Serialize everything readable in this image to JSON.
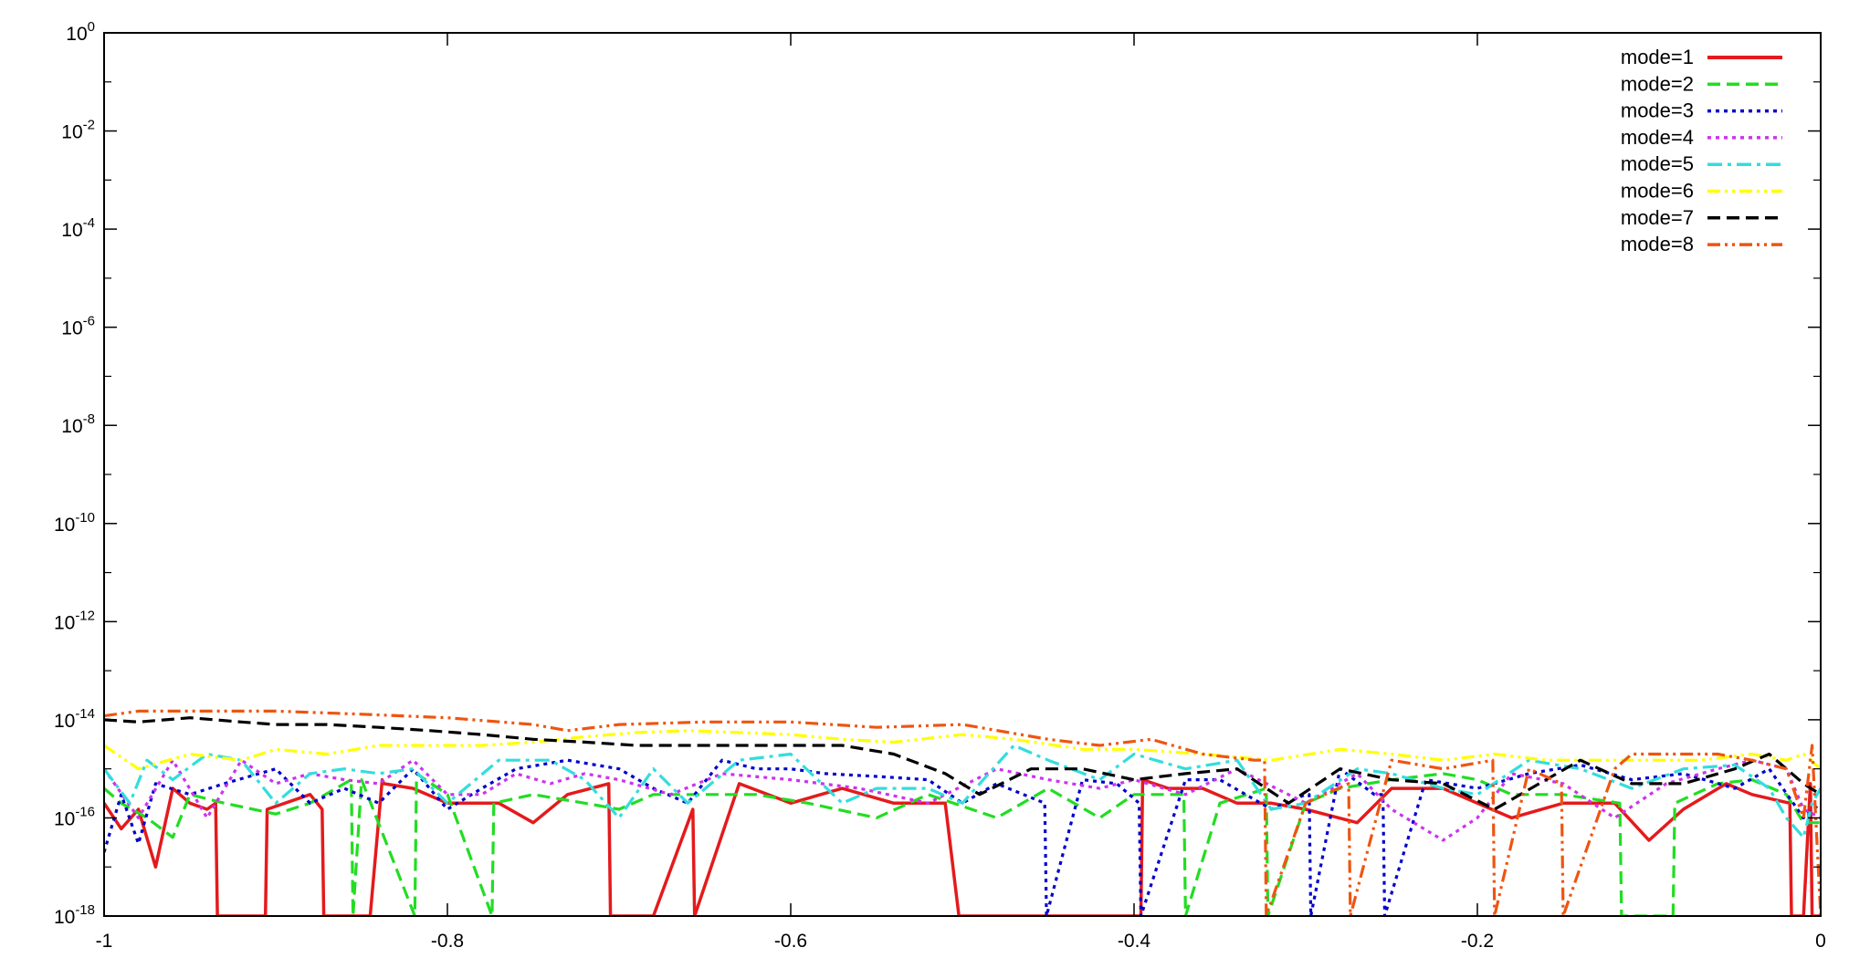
{
  "chart_data": {
    "type": "line",
    "title": "",
    "xlabel": "",
    "ylabel": "",
    "xlim": [
      -1,
      0
    ],
    "ylim": [
      1e-18,
      1
    ],
    "yscale": "log",
    "grid": false,
    "legend_position": "top-right",
    "x_ticks": [
      -1,
      -0.8,
      -0.6,
      -0.4,
      -0.2,
      0
    ],
    "x_tick_labels": [
      "-1",
      "-0.8",
      "-0.6",
      "-0.4",
      "-0.2",
      "0"
    ],
    "y_ticks": [
      {
        "value": 1e-18,
        "base": "10",
        "exp": "-18"
      },
      {
        "value": 1e-16,
        "base": "10",
        "exp": "-16"
      },
      {
        "value": 1e-14,
        "base": "10",
        "exp": "-14"
      },
      {
        "value": 1e-12,
        "base": "10",
        "exp": "-12"
      },
      {
        "value": 1e-10,
        "base": "10",
        "exp": "-10"
      },
      {
        "value": 1e-08,
        "base": "10",
        "exp": "-8"
      },
      {
        "value": 1e-06,
        "base": "10",
        "exp": "-6"
      },
      {
        "value": 0.0001,
        "base": "10",
        "exp": "-4"
      },
      {
        "value": 0.01,
        "base": "10",
        "exp": "-2"
      },
      {
        "value": 1,
        "base": "10",
        "exp": "0"
      }
    ],
    "series": [
      {
        "name": "mode=1",
        "color": "#e41a1c",
        "dash": "solid",
        "x": [
          -1,
          -0.99,
          -0.98,
          -0.97,
          -0.96,
          -0.95,
          -0.94,
          -0.935,
          -0.934,
          -0.906,
          -0.905,
          -0.88,
          -0.873,
          -0.872,
          -0.845,
          -0.838,
          -0.837,
          -0.82,
          -0.8,
          -0.77,
          -0.75,
          -0.73,
          -0.706,
          -0.705,
          -0.68,
          -0.657,
          -0.656,
          -0.63,
          -0.6,
          -0.57,
          -0.54,
          -0.51,
          -0.502,
          -0.501,
          -0.45,
          -0.396,
          -0.395,
          -0.38,
          -0.36,
          -0.34,
          -0.32,
          -0.3,
          -0.27,
          -0.25,
          -0.22,
          -0.2,
          -0.18,
          -0.15,
          -0.12,
          -0.1,
          -0.08,
          -0.055,
          -0.04,
          -0.018,
          -0.017,
          -0.01,
          -0.006,
          -0.005,
          0
        ],
        "y": [
          2e-16,
          6e-17,
          1.5e-16,
          1e-17,
          4e-16,
          2e-16,
          1.5e-16,
          2e-16,
          1e-18,
          1e-18,
          1.5e-16,
          3e-16,
          1.5e-16,
          1e-18,
          1e-18,
          6e-16,
          5e-16,
          4e-16,
          2e-16,
          2e-16,
          8e-17,
          3e-16,
          5e-16,
          1e-18,
          1e-18,
          1.5e-16,
          1e-18,
          5e-16,
          2e-16,
          4e-16,
          2e-16,
          2e-16,
          1e-18,
          1e-18,
          1e-18,
          1e-18,
          6e-16,
          4e-16,
          4e-16,
          2e-16,
          2e-16,
          1.5e-16,
          8e-17,
          4e-16,
          4e-16,
          2e-16,
          1e-16,
          2e-16,
          2e-16,
          3.5e-17,
          1.5e-16,
          5e-16,
          3e-16,
          2e-16,
          1e-18,
          1e-18,
          5e-16,
          1e-18,
          1e-18
        ]
      },
      {
        "name": "mode=2",
        "color": "#22dd22",
        "dash": "dashed",
        "x": [
          -1,
          -0.99,
          -0.975,
          -0.96,
          -0.95,
          -0.93,
          -0.9,
          -0.88,
          -0.856,
          -0.855,
          -0.85,
          -0.819,
          -0.818,
          -0.8,
          -0.774,
          -0.773,
          -0.75,
          -0.72,
          -0.7,
          -0.68,
          -0.65,
          -0.62,
          -0.59,
          -0.55,
          -0.52,
          -0.48,
          -0.45,
          -0.42,
          -0.4,
          -0.371,
          -0.37,
          -0.35,
          -0.323,
          -0.322,
          -0.3,
          -0.28,
          -0.25,
          -0.22,
          -0.2,
          -0.18,
          -0.15,
          -0.117,
          -0.116,
          -0.086,
          -0.085,
          -0.06,
          -0.04,
          -0.02,
          -0.01,
          0
        ],
        "y": [
          4e-16,
          2e-16,
          1e-16,
          4e-17,
          3e-16,
          2e-16,
          1.2e-16,
          2e-16,
          6e-16,
          1e-18,
          6e-16,
          1e-18,
          8e-16,
          3e-16,
          1e-18,
          2e-16,
          3e-16,
          2e-16,
          1.5e-16,
          3e-16,
          3e-16,
          3e-16,
          2e-16,
          1e-16,
          3e-16,
          1e-16,
          4e-16,
          1e-16,
          3e-16,
          3e-16,
          1e-18,
          2e-16,
          4e-16,
          1e-18,
          2e-16,
          4e-16,
          6e-16,
          8e-16,
          6e-16,
          3e-16,
          3e-16,
          2e-16,
          1e-18,
          1e-18,
          2e-16,
          5e-16,
          6e-16,
          3e-16,
          8e-17,
          8e-17
        ]
      },
      {
        "name": "mode=3",
        "color": "#0000cc",
        "dash": "dotted",
        "x": [
          -1,
          -0.99,
          -0.98,
          -0.97,
          -0.95,
          -0.93,
          -0.9,
          -0.88,
          -0.86,
          -0.84,
          -0.82,
          -0.8,
          -0.78,
          -0.76,
          -0.73,
          -0.7,
          -0.68,
          -0.66,
          -0.64,
          -0.62,
          -0.6,
          -0.58,
          -0.55,
          -0.52,
          -0.5,
          -0.48,
          -0.452,
          -0.451,
          -0.43,
          -0.41,
          -0.397,
          -0.396,
          -0.37,
          -0.35,
          -0.32,
          -0.3,
          -0.298,
          -0.297,
          -0.28,
          -0.26,
          -0.255,
          -0.254,
          -0.23,
          -0.2,
          -0.17,
          -0.14,
          -0.11,
          -0.08,
          -0.05,
          -0.03,
          -0.01,
          0
        ],
        "y": [
          2e-17,
          3e-16,
          3e-17,
          5e-16,
          3e-16,
          5e-16,
          1e-15,
          2e-16,
          4e-16,
          2e-16,
          1e-15,
          1.5e-16,
          4e-16,
          1e-15,
          1.5e-15,
          1e-15,
          4e-16,
          2e-16,
          1.5e-15,
          1e-15,
          1e-15,
          8e-16,
          7e-16,
          6e-16,
          2e-16,
          5e-16,
          2e-16,
          1e-18,
          6e-16,
          5e-16,
          2e-16,
          1e-18,
          6e-16,
          6e-16,
          1.5e-16,
          3e-16,
          3e-16,
          1e-18,
          1e-15,
          3e-16,
          3e-16,
          1e-18,
          6e-16,
          4e-16,
          8e-16,
          1.2e-15,
          6e-16,
          8e-16,
          4e-16,
          1e-15,
          1e-16,
          2e-16
        ]
      },
      {
        "name": "mode=4",
        "color": "#cc33ee",
        "dash": "dotted",
        "x": [
          -1,
          -0.98,
          -0.96,
          -0.94,
          -0.92,
          -0.9,
          -0.88,
          -0.86,
          -0.84,
          -0.82,
          -0.8,
          -0.78,
          -0.76,
          -0.74,
          -0.72,
          -0.7,
          -0.67,
          -0.64,
          -0.6,
          -0.56,
          -0.52,
          -0.48,
          -0.45,
          -0.42,
          -0.4,
          -0.37,
          -0.34,
          -0.3,
          -0.27,
          -0.25,
          -0.22,
          -0.2,
          -0.18,
          -0.15,
          -0.12,
          -0.09,
          -0.06,
          -0.04,
          -0.02,
          -0.01,
          0
        ],
        "y": [
          1e-15,
          1e-16,
          1.5e-15,
          1e-16,
          1.5e-15,
          5e-16,
          8e-16,
          6e-16,
          5e-16,
          1.5e-15,
          3e-16,
          3e-16,
          8e-16,
          5e-16,
          8e-16,
          6e-16,
          3e-16,
          8e-16,
          6e-16,
          4e-16,
          2e-16,
          1e-15,
          6e-16,
          4e-16,
          6e-16,
          3e-16,
          1e-15,
          2e-16,
          8e-16,
          1.5e-16,
          3.5e-17,
          1e-16,
          8e-16,
          5e-16,
          1e-16,
          5e-16,
          1e-15,
          1.5e-15,
          1e-15,
          1.5e-16,
          1e-16
        ]
      },
      {
        "name": "mode=5",
        "color": "#33dddd",
        "dash": "dashdot",
        "x": [
          -1,
          -0.985,
          -0.975,
          -0.96,
          -0.94,
          -0.92,
          -0.9,
          -0.88,
          -0.86,
          -0.84,
          -0.82,
          -0.8,
          -0.77,
          -0.74,
          -0.72,
          -0.7,
          -0.68,
          -0.66,
          -0.63,
          -0.6,
          -0.57,
          -0.55,
          -0.52,
          -0.5,
          -0.47,
          -0.45,
          -0.42,
          -0.4,
          -0.37,
          -0.34,
          -0.32,
          -0.3,
          -0.27,
          -0.25,
          -0.22,
          -0.2,
          -0.17,
          -0.14,
          -0.11,
          -0.08,
          -0.05,
          -0.03,
          -0.02,
          -0.01,
          -0.005,
          0
        ],
        "y": [
          1e-15,
          2e-16,
          1.5e-15,
          6e-16,
          2e-15,
          1.5e-15,
          2e-16,
          8e-16,
          1e-15,
          8e-16,
          1e-15,
          2e-16,
          1.5e-15,
          1.5e-15,
          6e-16,
          1e-16,
          1e-15,
          2e-16,
          1.5e-15,
          2e-15,
          2e-16,
          4e-16,
          4e-16,
          2e-16,
          3e-15,
          1.5e-15,
          6e-16,
          2e-15,
          1e-15,
          1.5e-15,
          1.5e-16,
          2e-16,
          1e-15,
          8e-16,
          4e-16,
          3e-16,
          1.5e-15,
          1e-15,
          4e-16,
          1e-15,
          1.2e-15,
          4e-16,
          1e-16,
          4e-17,
          2e-16,
          4e-16
        ]
      },
      {
        "name": "mode=6",
        "color": "#ffff00",
        "dash": "dashdotdot",
        "x": [
          -1,
          -0.98,
          -0.95,
          -0.92,
          -0.9,
          -0.87,
          -0.84,
          -0.81,
          -0.78,
          -0.75,
          -0.72,
          -0.69,
          -0.66,
          -0.63,
          -0.6,
          -0.57,
          -0.54,
          -0.5,
          -0.47,
          -0.43,
          -0.4,
          -0.36,
          -0.32,
          -0.28,
          -0.25,
          -0.22,
          -0.19,
          -0.16,
          -0.13,
          -0.1,
          -0.07,
          -0.04,
          -0.02,
          -0.01,
          0
        ],
        "y": [
          3e-15,
          1e-15,
          2e-15,
          1.5e-15,
          2.5e-15,
          2e-15,
          3e-15,
          3e-15,
          3e-15,
          3.5e-15,
          4.5e-15,
          5.5e-15,
          6e-15,
          5.5e-15,
          5e-15,
          4e-15,
          3.5e-15,
          5e-15,
          4e-15,
          2.5e-15,
          2.5e-15,
          2e-15,
          1.5e-15,
          2.5e-15,
          2e-15,
          1.5e-15,
          2e-15,
          1.5e-15,
          1.5e-15,
          1.5e-15,
          1.5e-15,
          2e-15,
          1.5e-15,
          2e-15,
          1e-15
        ]
      },
      {
        "name": "mode=7",
        "color": "#000000",
        "dash": "dashed",
        "x": [
          -1,
          -0.98,
          -0.95,
          -0.92,
          -0.9,
          -0.87,
          -0.84,
          -0.81,
          -0.78,
          -0.75,
          -0.72,
          -0.69,
          -0.66,
          -0.63,
          -0.6,
          -0.57,
          -0.54,
          -0.51,
          -0.49,
          -0.46,
          -0.43,
          -0.4,
          -0.37,
          -0.34,
          -0.31,
          -0.28,
          -0.25,
          -0.22,
          -0.19,
          -0.16,
          -0.14,
          -0.11,
          -0.08,
          -0.05,
          -0.03,
          -0.01,
          0
        ],
        "y": [
          1e-14,
          9e-15,
          1.1e-14,
          9e-15,
          8e-15,
          8e-15,
          7e-15,
          6e-15,
          5e-15,
          4e-15,
          3.5e-15,
          3e-15,
          3e-15,
          3e-15,
          3e-15,
          3e-15,
          2e-15,
          8e-16,
          3e-16,
          1e-15,
          1e-15,
          6e-16,
          8e-16,
          1e-15,
          2e-16,
          1e-15,
          6e-16,
          5e-16,
          1.5e-16,
          6e-16,
          1.5e-15,
          5e-16,
          5e-16,
          1e-15,
          2e-15,
          5e-16,
          3e-16
        ]
      },
      {
        "name": "mode=8",
        "color": "#ee5511",
        "dash": "dashdotdot",
        "x": [
          -1,
          -0.98,
          -0.95,
          -0.9,
          -0.85,
          -0.8,
          -0.75,
          -0.73,
          -0.7,
          -0.65,
          -0.6,
          -0.55,
          -0.5,
          -0.45,
          -0.42,
          -0.39,
          -0.36,
          -0.33,
          -0.324,
          -0.323,
          -0.3,
          -0.275,
          -0.274,
          -0.25,
          -0.22,
          -0.191,
          -0.19,
          -0.17,
          -0.151,
          -0.15,
          -0.12,
          -0.11,
          -0.09,
          -0.06,
          -0.04,
          -0.02,
          -0.01,
          -0.005,
          0
        ],
        "y": [
          1.2e-14,
          1.5e-14,
          1.5e-14,
          1.5e-14,
          1.3e-14,
          1.1e-14,
          8e-15,
          6e-15,
          8e-15,
          9e-15,
          9e-15,
          7e-15,
          8e-15,
          4e-15,
          3e-15,
          4e-15,
          2e-15,
          1.5e-15,
          1.5e-15,
          1e-18,
          2e-16,
          5e-16,
          1e-18,
          1.5e-15,
          1e-15,
          1.5e-15,
          1e-18,
          1e-15,
          5e-16,
          1e-18,
          1e-15,
          2e-15,
          2e-15,
          2e-15,
          1.5e-15,
          1e-15,
          1e-16,
          3e-15,
          1e-18
        ]
      }
    ]
  }
}
